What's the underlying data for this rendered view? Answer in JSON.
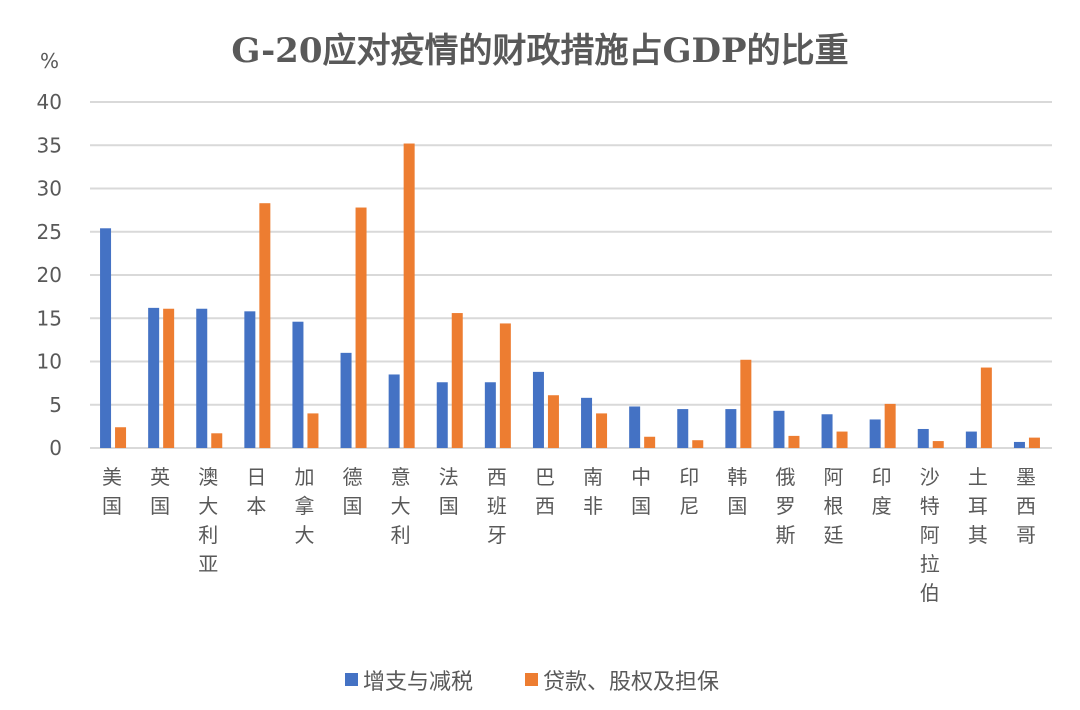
{
  "chart_data": {
    "type": "bar",
    "title": "G-20应对疫情的财政措施占GDP的比重",
    "ylabel": "%",
    "xlabel": "",
    "ylim": [
      0,
      40
    ],
    "yticks": [
      0,
      5,
      10,
      15,
      20,
      25,
      30,
      35,
      40
    ],
    "grid": true,
    "legend_position": "bottom",
    "categories": [
      "美国",
      "英国",
      "澳大利亚",
      "日本",
      "加拿大",
      "德国",
      "意大利",
      "法国",
      "西班牙",
      "巴西",
      "南非",
      "中国",
      "印尼",
      "韩国",
      "俄罗斯",
      "阿根廷",
      "印度",
      "沙特阿拉伯",
      "土耳其",
      "墨西哥"
    ],
    "series": [
      {
        "name": "增支与减税",
        "color": "#4472c4",
        "values": [
          25.4,
          16.2,
          16.1,
          15.8,
          14.6,
          11.0,
          8.5,
          7.6,
          7.6,
          8.8,
          5.8,
          4.8,
          4.5,
          4.5,
          4.3,
          3.9,
          3.3,
          2.2,
          1.9,
          0.7
        ]
      },
      {
        "name": "贷款、股权及担保",
        "color": "#ed7d31",
        "values": [
          2.4,
          16.1,
          1.7,
          28.3,
          4.0,
          27.8,
          35.2,
          15.6,
          14.4,
          6.1,
          4.0,
          1.3,
          0.9,
          10.2,
          1.4,
          1.9,
          5.1,
          0.8,
          9.3,
          1.2
        ]
      }
    ]
  }
}
